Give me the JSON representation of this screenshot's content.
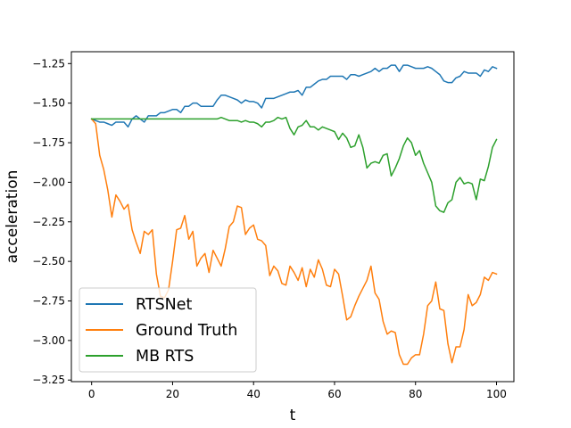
{
  "chart_data": {
    "type": "line",
    "xlabel": "t",
    "ylabel": "acceleration",
    "xlim": [
      -5,
      104.3
    ],
    "ylim": [
      -3.26,
      -1.175
    ],
    "xticks": [
      0,
      20,
      40,
      60,
      80,
      100
    ],
    "xtick_labels": [
      "0",
      "20",
      "40",
      "60",
      "80",
      "100"
    ],
    "yticks": [
      -1.25,
      -1.5,
      -1.75,
      -2.0,
      -2.25,
      -2.5,
      -2.75,
      -3.0,
      -3.25
    ],
    "ytick_labels": [
      "−1.25",
      "−1.50",
      "−1.75",
      "−2.00",
      "−2.25",
      "−2.50",
      "−2.75",
      "−3.00",
      "−3.25"
    ],
    "grid": false,
    "legend_position": "lower-left",
    "series": [
      {
        "name": "RTSNet",
        "color": "#1f77b4",
        "values": [
          -1.6,
          -1.61,
          -1.62,
          -1.62,
          -1.63,
          -1.64,
          -1.62,
          -1.62,
          -1.62,
          -1.65,
          -1.6,
          -1.58,
          -1.6,
          -1.62,
          -1.58,
          -1.58,
          -1.58,
          -1.56,
          -1.56,
          -1.55,
          -1.54,
          -1.54,
          -1.56,
          -1.52,
          -1.52,
          -1.5,
          -1.5,
          -1.52,
          -1.52,
          -1.52,
          -1.52,
          -1.48,
          -1.45,
          -1.45,
          -1.46,
          -1.47,
          -1.48,
          -1.5,
          -1.48,
          -1.49,
          -1.49,
          -1.5,
          -1.53,
          -1.47,
          -1.47,
          -1.47,
          -1.46,
          -1.45,
          -1.44,
          -1.43,
          -1.43,
          -1.42,
          -1.45,
          -1.4,
          -1.4,
          -1.38,
          -1.36,
          -1.35,
          -1.35,
          -1.33,
          -1.33,
          -1.33,
          -1.33,
          -1.35,
          -1.32,
          -1.32,
          -1.33,
          -1.32,
          -1.31,
          -1.3,
          -1.28,
          -1.3,
          -1.28,
          -1.28,
          -1.26,
          -1.26,
          -1.3,
          -1.26,
          -1.26,
          -1.27,
          -1.28,
          -1.28,
          -1.28,
          -1.27,
          -1.28,
          -1.3,
          -1.32,
          -1.36,
          -1.37,
          -1.37,
          -1.34,
          -1.33,
          -1.3,
          -1.31,
          -1.31,
          -1.31,
          -1.33,
          -1.29,
          -1.3,
          -1.27,
          -1.28
        ]
      },
      {
        "name": "Ground Truth",
        "color": "#ff7f0e",
        "values": [
          -1.6,
          -1.63,
          -1.83,
          -1.92,
          -2.05,
          -2.22,
          -2.08,
          -2.12,
          -2.17,
          -2.14,
          -2.3,
          -2.38,
          -2.45,
          -2.31,
          -2.33,
          -2.3,
          -2.58,
          -2.72,
          -2.73,
          -2.68,
          -2.5,
          -2.3,
          -2.29,
          -2.21,
          -2.36,
          -2.31,
          -2.53,
          -2.48,
          -2.45,
          -2.57,
          -2.43,
          -2.48,
          -2.53,
          -2.42,
          -2.28,
          -2.25,
          -2.15,
          -2.16,
          -2.33,
          -2.29,
          -2.27,
          -2.36,
          -2.37,
          -2.4,
          -2.59,
          -2.53,
          -2.56,
          -2.64,
          -2.65,
          -2.53,
          -2.57,
          -2.62,
          -2.54,
          -2.66,
          -2.55,
          -2.6,
          -2.49,
          -2.55,
          -2.65,
          -2.66,
          -2.55,
          -2.58,
          -2.72,
          -2.87,
          -2.85,
          -2.78,
          -2.72,
          -2.67,
          -2.62,
          -2.53,
          -2.7,
          -2.74,
          -2.88,
          -2.96,
          -2.94,
          -2.95,
          -3.09,
          -3.15,
          -3.15,
          -3.11,
          -3.09,
          -3.09,
          -2.96,
          -2.78,
          -2.75,
          -2.63,
          -2.8,
          -2.81,
          -3.02,
          -3.14,
          -3.04,
          -3.04,
          -2.93,
          -2.71,
          -2.78,
          -2.76,
          -2.71,
          -2.6,
          -2.62,
          -2.57,
          -2.58
        ]
      },
      {
        "name": "MB RTS",
        "color": "#2ca02c",
        "values": [
          -1.6,
          -1.6,
          -1.6,
          -1.6,
          -1.6,
          -1.6,
          -1.6,
          -1.6,
          -1.6,
          -1.6,
          -1.6,
          -1.6,
          -1.6,
          -1.6,
          -1.6,
          -1.6,
          -1.6,
          -1.6,
          -1.6,
          -1.6,
          -1.6,
          -1.6,
          -1.6,
          -1.6,
          -1.6,
          -1.6,
          -1.6,
          -1.6,
          -1.6,
          -1.6,
          -1.6,
          -1.6,
          -1.59,
          -1.6,
          -1.61,
          -1.61,
          -1.61,
          -1.62,
          -1.61,
          -1.62,
          -1.62,
          -1.63,
          -1.65,
          -1.62,
          -1.62,
          -1.61,
          -1.59,
          -1.6,
          -1.59,
          -1.66,
          -1.7,
          -1.65,
          -1.64,
          -1.61,
          -1.65,
          -1.65,
          -1.67,
          -1.65,
          -1.66,
          -1.67,
          -1.68,
          -1.73,
          -1.69,
          -1.72,
          -1.78,
          -1.77,
          -1.7,
          -1.78,
          -1.91,
          -1.88,
          -1.87,
          -1.88,
          -1.83,
          -1.82,
          -1.96,
          -1.91,
          -1.85,
          -1.77,
          -1.72,
          -1.75,
          -1.83,
          -1.8,
          -1.88,
          -1.94,
          -2.0,
          -2.15,
          -2.18,
          -2.19,
          -2.13,
          -2.11,
          -2.0,
          -1.97,
          -2.01,
          -2.0,
          -2.01,
          -2.11,
          -1.98,
          -1.99,
          -1.9,
          -1.78,
          -1.73
        ]
      }
    ]
  }
}
